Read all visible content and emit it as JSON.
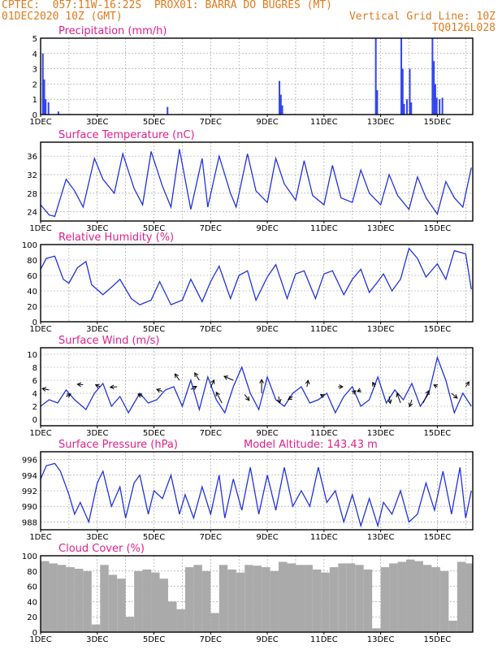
{
  "header": {
    "line1": "CPTEC:  057:11W-16:22S  PROX01: BARRA DO BUGRES (MT)",
    "line2_left": "01DEC2020 10Z (GMT)",
    "line2_right": "Vertical Grid Line: 10Z",
    "line3_right": "TQ0126L028"
  },
  "colors": {
    "header": "#e07a1f",
    "title": "#e0208a",
    "series": "#2233dd",
    "bar": "#3344ee",
    "cloud": "#aaaaaa",
    "arrow": "#000000"
  },
  "chart_data": [
    {
      "type": "bar",
      "title": "Precipitation (mm/h)",
      "x_unit": "days since 01DEC 10Z",
      "xticks": [
        "1DEC",
        "3DEC",
        "5DEC",
        "7DEC",
        "9DEC",
        "11DEC",
        "13DEC",
        "15DEC"
      ],
      "ylim": [
        0,
        5
      ],
      "yticks": [
        0,
        1,
        2,
        3,
        4,
        5
      ],
      "grid": true,
      "bars": [
        [
          0.05,
          4.0
        ],
        [
          0.1,
          2.3
        ],
        [
          0.15,
          1.0
        ],
        [
          0.25,
          0.8
        ],
        [
          0.6,
          0.2
        ],
        [
          4.45,
          0.5
        ],
        [
          8.4,
          2.2
        ],
        [
          8.45,
          1.3
        ],
        [
          8.5,
          0.6
        ],
        [
          11.8,
          5.0
        ],
        [
          11.85,
          1.6
        ],
        [
          12.7,
          5.0
        ],
        [
          12.75,
          3.0
        ],
        [
          12.8,
          0.7
        ],
        [
          12.9,
          1.0
        ],
        [
          13.0,
          3.0
        ],
        [
          13.05,
          0.8
        ],
        [
          13.8,
          5.0
        ],
        [
          13.85,
          3.5
        ],
        [
          13.9,
          2.0
        ],
        [
          13.95,
          1.1
        ],
        [
          14.05,
          1.0
        ],
        [
          14.15,
          1.1
        ]
      ]
    },
    {
      "type": "line",
      "title": "Surface Temperature (nC)",
      "xticks": [
        "1DEC",
        "3DEC",
        "5DEC",
        "7DEC",
        "9DEC",
        "11DEC",
        "13DEC",
        "15DEC"
      ],
      "ylim": [
        22,
        39
      ],
      "yticks": [
        24,
        28,
        32,
        36
      ],
      "grid": true,
      "x": [
        0,
        0.3,
        0.5,
        0.6,
        0.9,
        1.2,
        1.5,
        1.9,
        2.2,
        2.6,
        2.9,
        3.3,
        3.6,
        3.9,
        4.3,
        4.6,
        4.9,
        5.3,
        5.7,
        5.9,
        6.3,
        6.7,
        6.9,
        7.3,
        7.6,
        8.0,
        8.3,
        8.6,
        9.0,
        9.3,
        9.6,
        10.0,
        10.3,
        10.6,
        11.0,
        11.3,
        11.6,
        12.0,
        12.3,
        12.6,
        13.0,
        13.3,
        13.6,
        14.0,
        14.3,
        14.6,
        14.9,
        15.2
      ],
      "y": [
        25.5,
        23.3,
        23.0,
        25.0,
        31.0,
        28.5,
        25.0,
        35.5,
        31.0,
        28.0,
        36.5,
        29.0,
        25.5,
        37.0,
        29.5,
        25.0,
        37.5,
        24.5,
        35.5,
        25.0,
        36.0,
        28.0,
        25.0,
        36.5,
        28.5,
        26.0,
        35.5,
        30.0,
        26.5,
        35.0,
        27.5,
        25.5,
        34.0,
        27.0,
        26.0,
        33.0,
        28.0,
        25.5,
        32.0,
        27.5,
        24.5,
        31.5,
        27.0,
        23.5,
        30.5,
        27.0,
        25.0,
        33.5
      ]
    },
    {
      "type": "line",
      "title": "Relative Humidity (%)",
      "xticks": [
        "1DEC",
        "3DEC",
        "5DEC",
        "7DEC",
        "9DEC",
        "11DEC",
        "13DEC",
        "15DEC"
      ],
      "ylim": [
        0,
        100
      ],
      "yticks": [
        0,
        20,
        40,
        60,
        80,
        100
      ],
      "grid": true,
      "x": [
        0,
        0.2,
        0.5,
        0.8,
        1.0,
        1.3,
        1.6,
        1.8,
        2.2,
        2.6,
        2.8,
        3.2,
        3.5,
        3.9,
        4.2,
        4.6,
        5.0,
        5.3,
        5.7,
        6.0,
        6.3,
        6.7,
        7.0,
        7.3,
        7.6,
        8.0,
        8.3,
        8.7,
        9.0,
        9.3,
        9.7,
        10.0,
        10.3,
        10.7,
        11.0,
        11.3,
        11.6,
        11.9,
        12.1,
        12.4,
        12.7,
        13.0,
        13.3,
        13.6,
        14.0,
        14.3,
        14.6,
        15.0,
        15.2
      ],
      "y": [
        68,
        82,
        85,
        55,
        50,
        70,
        78,
        48,
        35,
        48,
        55,
        30,
        22,
        28,
        52,
        22,
        28,
        55,
        26,
        52,
        72,
        30,
        60,
        66,
        28,
        58,
        74,
        30,
        62,
        66,
        30,
        62,
        66,
        35,
        55,
        68,
        38,
        52,
        62,
        40,
        55,
        95,
        82,
        58,
        75,
        55,
        92,
        88,
        42
      ]
    },
    {
      "type": "line",
      "title": "Surface Wind (m/s)",
      "xticks": [
        "1DEC",
        "3DEC",
        "5DEC",
        "7DEC",
        "9DEC",
        "11DEC",
        "13DEC",
        "15DEC"
      ],
      "ylim": [
        -1,
        11
      ],
      "yticks": [
        0,
        2,
        4,
        6,
        8,
        10
      ],
      "grid": true,
      "x": [
        0,
        0.3,
        0.6,
        0.9,
        1.2,
        1.6,
        1.9,
        2.2,
        2.5,
        2.8,
        3.1,
        3.5,
        3.8,
        4.1,
        4.4,
        4.7,
        5.0,
        5.3,
        5.6,
        5.9,
        6.2,
        6.5,
        6.8,
        7.1,
        7.4,
        7.7,
        8.0,
        8.3,
        8.6,
        8.9,
        9.2,
        9.5,
        9.8,
        10.1,
        10.4,
        10.7,
        11.0,
        11.3,
        11.6,
        11.9,
        12.2,
        12.5,
        12.8,
        13.1,
        13.4,
        13.7,
        14.0,
        14.3,
        14.6,
        14.9,
        15.2
      ],
      "y": [
        2,
        3,
        2.5,
        4.5,
        3,
        1.5,
        4,
        5.5,
        2,
        3.5,
        1,
        4,
        2.5,
        3,
        4.5,
        5,
        2,
        6,
        1.5,
        6.5,
        3,
        1,
        5,
        8,
        4,
        1.5,
        6.5,
        3,
        2,
        4,
        5,
        2.5,
        3,
        4,
        1,
        3.5,
        5,
        2,
        3,
        6.5,
        2.5,
        4.5,
        3,
        5.5,
        2,
        4,
        9.5,
        6,
        1,
        4,
        2
      ],
      "arrows": [
        [
          0.3,
          4.5,
          -0.6,
          0.3
        ],
        [
          0.9,
          3.5,
          0.4,
          0.5
        ],
        [
          1.5,
          5.3,
          -0.5,
          0.1
        ],
        [
          2.1,
          5.0,
          -0.4,
          0.4
        ],
        [
          2.7,
          5.0,
          -0.6,
          -0.1
        ],
        [
          3.6,
          3.5,
          -0.4,
          0.5
        ],
        [
          4.3,
          4.3,
          -0.5,
          0.4
        ],
        [
          4.9,
          6.0,
          -0.4,
          1.3
        ],
        [
          5.3,
          4.6,
          0.5,
          0.6
        ],
        [
          5.6,
          6.0,
          -0.4,
          1.5
        ],
        [
          6.0,
          4.9,
          0.3,
          1.5
        ],
        [
          6.4,
          2.5,
          -0.5,
          2.2
        ],
        [
          6.8,
          6.0,
          -0.8,
          0.8
        ],
        [
          7.2,
          3.8,
          0.4,
          -1.2
        ],
        [
          7.8,
          4.0,
          0.0,
          2.8
        ],
        [
          8.4,
          3.5,
          0.1,
          -1.3
        ],
        [
          8.9,
          3.5,
          -0.4,
          -0.6
        ],
        [
          9.4,
          5.0,
          0.1,
          1.3
        ],
        [
          10.0,
          3.5,
          -0.3,
          0.4
        ],
        [
          10.5,
          5.0,
          0.4,
          0.0
        ],
        [
          11.0,
          4.0,
          0.3,
          0.5
        ],
        [
          11.3,
          4.5,
          -0.3,
          -0.3
        ],
        [
          11.8,
          5.0,
          -0.2,
          0.9
        ],
        [
          12.3,
          3.5,
          0.1,
          -1.4
        ],
        [
          12.7,
          2.5,
          -0.3,
          2.0
        ],
        [
          13.1,
          3.0,
          -0.2,
          -1.4
        ],
        [
          13.5,
          2.5,
          0.5,
          2.5
        ],
        [
          14.0,
          5.0,
          -0.3,
          0.4
        ],
        [
          14.5,
          4.0,
          0.5,
          -1.0
        ],
        [
          15.0,
          5.0,
          0.3,
          1.0
        ]
      ]
    },
    {
      "type": "line",
      "title": "Surface Pressure (hPa)",
      "annotation": "Model Altitude: 143.43 m",
      "xticks": [
        "1DEC",
        "3DEC",
        "5DEC",
        "7DEC",
        "9DEC",
        "11DEC",
        "13DEC",
        "15DEC"
      ],
      "ylim": [
        987,
        997
      ],
      "yticks": [
        988,
        990,
        992,
        994,
        996
      ],
      "grid": true,
      "x": [
        0,
        0.2,
        0.5,
        0.7,
        1.0,
        1.2,
        1.4,
        1.7,
        2.0,
        2.2,
        2.5,
        2.8,
        3.0,
        3.3,
        3.5,
        3.8,
        4.0,
        4.3,
        4.6,
        4.9,
        5.1,
        5.4,
        5.7,
        6.0,
        6.3,
        6.5,
        6.8,
        7.1,
        7.4,
        7.7,
        8.0,
        8.3,
        8.6,
        8.9,
        9.2,
        9.5,
        9.8,
        10.1,
        10.4,
        10.7,
        11.0,
        11.3,
        11.6,
        11.9,
        12.1,
        12.4,
        12.7,
        13.0,
        13.3,
        13.6,
        13.9,
        14.2,
        14.5,
        14.8,
        15.0,
        15.2
      ],
      "y": [
        993.5,
        995.2,
        995.5,
        994.5,
        991.5,
        989,
        990.5,
        988,
        993,
        994.5,
        990,
        992.5,
        988.5,
        993,
        994,
        989,
        992,
        991,
        994,
        989,
        991.5,
        988.5,
        992.5,
        989,
        994,
        988.5,
        993.5,
        989.5,
        995,
        989,
        994,
        989.5,
        995,
        990,
        992,
        990,
        995,
        990.5,
        992,
        988,
        991.5,
        987.5,
        991,
        987.5,
        990.5,
        989,
        992,
        988,
        989,
        993,
        989.5,
        994.5,
        989,
        995,
        988.5,
        992
      ]
    },
    {
      "type": "bar",
      "title": "Cloud Cover (%)",
      "xticks": [
        "1DEC",
        "3DEC",
        "5DEC",
        "7DEC",
        "9DEC",
        "11DEC",
        "13DEC",
        "15DEC"
      ],
      "ylim": [
        0,
        100
      ],
      "yticks": [
        0,
        20,
        40,
        60,
        80,
        100
      ],
      "grid": true,
      "x": [
        0,
        0.3,
        0.6,
        0.9,
        1.2,
        1.5,
        1.8,
        2.1,
        2.4,
        2.7,
        3.0,
        3.3,
        3.6,
        3.9,
        4.2,
        4.5,
        4.8,
        5.1,
        5.4,
        5.7,
        6.0,
        6.3,
        6.6,
        6.9,
        7.2,
        7.5,
        7.8,
        8.1,
        8.4,
        8.7,
        9.0,
        9.3,
        9.6,
        9.9,
        10.2,
        10.5,
        10.8,
        11.1,
        11.4,
        11.7,
        12.0,
        12.3,
        12.6,
        12.9,
        13.2,
        13.5,
        13.8,
        14.1,
        14.4,
        14.7,
        15.0,
        15.3
      ],
      "y": [
        93,
        90,
        88,
        85,
        83,
        80,
        10,
        88,
        75,
        70,
        20,
        80,
        82,
        78,
        70,
        40,
        30,
        85,
        88,
        80,
        25,
        88,
        82,
        78,
        88,
        87,
        85,
        80,
        92,
        90,
        88,
        88,
        82,
        78,
        85,
        90,
        90,
        88,
        82,
        5,
        85,
        90,
        92,
        95,
        93,
        88,
        85,
        80,
        15,
        92,
        90,
        85
      ]
    }
  ]
}
